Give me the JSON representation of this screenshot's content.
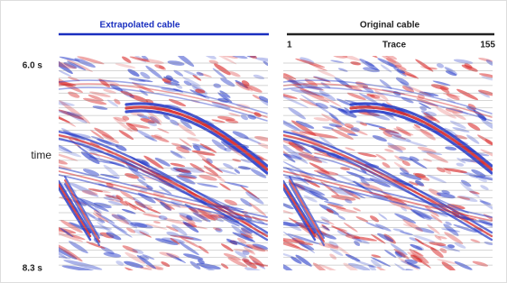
{
  "header": {
    "left_title": "Extrapolated cable",
    "right_title": "Original cable"
  },
  "trace_axis": {
    "start": "1",
    "label": "Trace",
    "end": "155"
  },
  "time_axis": {
    "top": "6.0 s",
    "label": "time",
    "bottom": "8.3 s"
  }
}
